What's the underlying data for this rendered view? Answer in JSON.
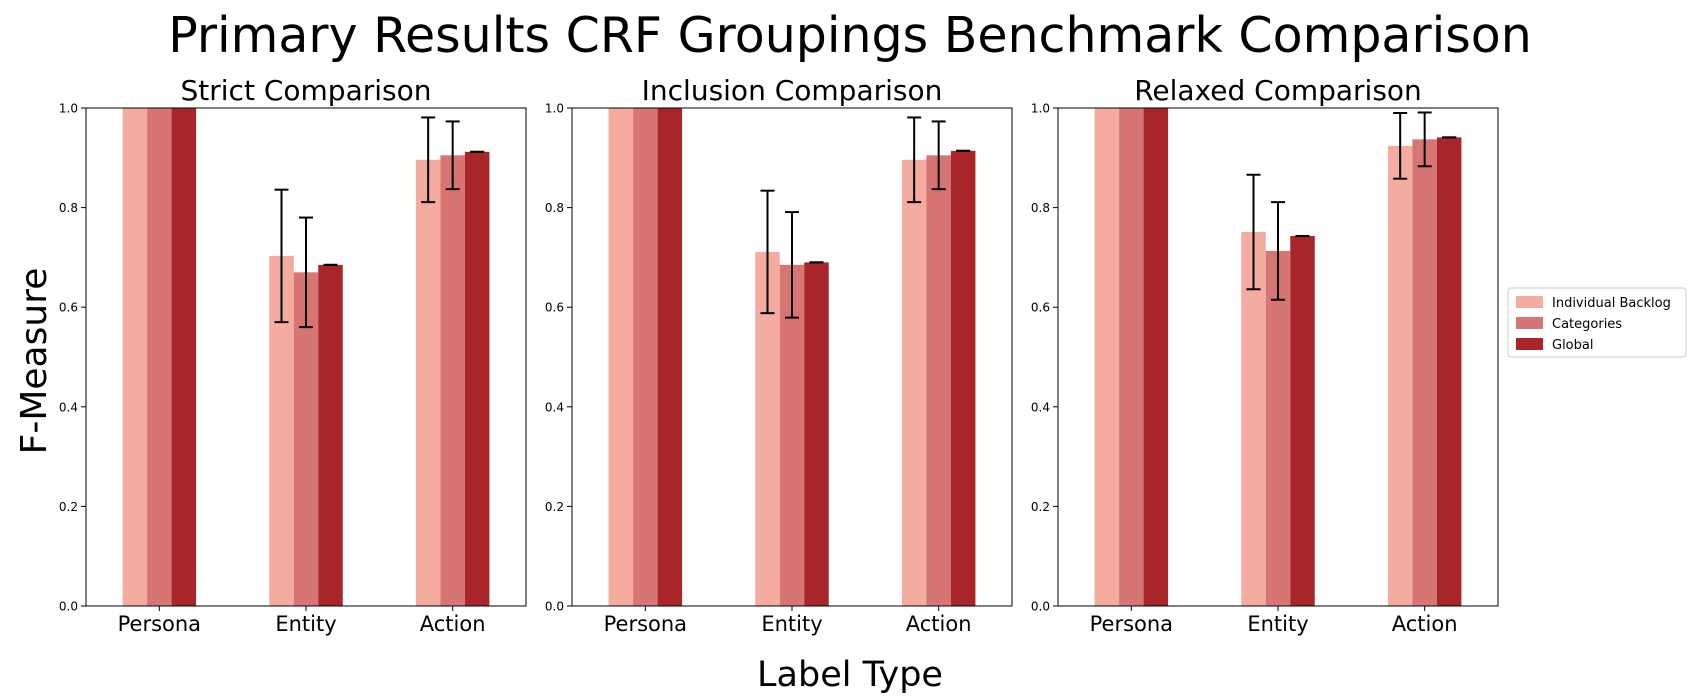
{
  "figure": {
    "suptitle": "Primary Results CRF Groupings Benchmark Comparison",
    "ylabel": "F-Measure",
    "xlabel": "Label Type"
  },
  "legend": {
    "placement": "right-center",
    "entries": [
      "Individual Backlog",
      "Categories",
      "Global"
    ]
  },
  "colors": {
    "Individual Backlog": "#f4aba0",
    "Categories": "#d67573",
    "Global": "#a8262a"
  },
  "chart_data": [
    {
      "type": "bar",
      "title": "Strict Comparison",
      "categories": [
        "Persona",
        "Entity",
        "Action"
      ],
      "ylim": [
        0,
        1.0
      ],
      "yticks": [
        "0.0",
        "0.2",
        "0.4",
        "0.6",
        "0.8",
        "1.0"
      ],
      "grid": false,
      "series": [
        {
          "name": "Individual Backlog",
          "values": [
            1.0,
            0.703,
            0.896
          ],
          "errors": [
            0.0,
            0.133,
            0.085
          ]
        },
        {
          "name": "Categories",
          "values": [
            1.0,
            0.67,
            0.905
          ],
          "errors": [
            0.0,
            0.11,
            0.068
          ]
        },
        {
          "name": "Global",
          "values": [
            1.0,
            0.685,
            0.912
          ],
          "errors": [
            0.0,
            0.0,
            0.0
          ]
        }
      ]
    },
    {
      "type": "bar",
      "title": "Inclusion Comparison",
      "categories": [
        "Persona",
        "Entity",
        "Action"
      ],
      "ylim": [
        0,
        1.0
      ],
      "yticks": [
        "0.0",
        "0.2",
        "0.4",
        "0.6",
        "0.8",
        "1.0"
      ],
      "grid": false,
      "series": [
        {
          "name": "Individual Backlog",
          "values": [
            1.0,
            0.711,
            0.896
          ],
          "errors": [
            0.0,
            0.123,
            0.085
          ]
        },
        {
          "name": "Categories",
          "values": [
            1.0,
            0.685,
            0.905
          ],
          "errors": [
            0.0,
            0.106,
            0.068
          ]
        },
        {
          "name": "Global",
          "values": [
            1.0,
            0.69,
            0.914
          ],
          "errors": [
            0.0,
            0.0,
            0.0
          ]
        }
      ]
    },
    {
      "type": "bar",
      "title": "Relaxed Comparison",
      "categories": [
        "Persona",
        "Entity",
        "Action"
      ],
      "ylim": [
        0,
        1.0
      ],
      "yticks": [
        "0.0",
        "0.2",
        "0.4",
        "0.6",
        "0.8",
        "1.0"
      ],
      "grid": false,
      "series": [
        {
          "name": "Individual Backlog",
          "values": [
            1.0,
            0.751,
            0.924
          ],
          "errors": [
            0.0,
            0.115,
            0.066
          ]
        },
        {
          "name": "Categories",
          "values": [
            1.0,
            0.713,
            0.937
          ],
          "errors": [
            0.0,
            0.098,
            0.054
          ]
        },
        {
          "name": "Global",
          "values": [
            1.0,
            0.743,
            0.941
          ],
          "errors": [
            0.0,
            0.0,
            0.0
          ]
        }
      ]
    }
  ]
}
